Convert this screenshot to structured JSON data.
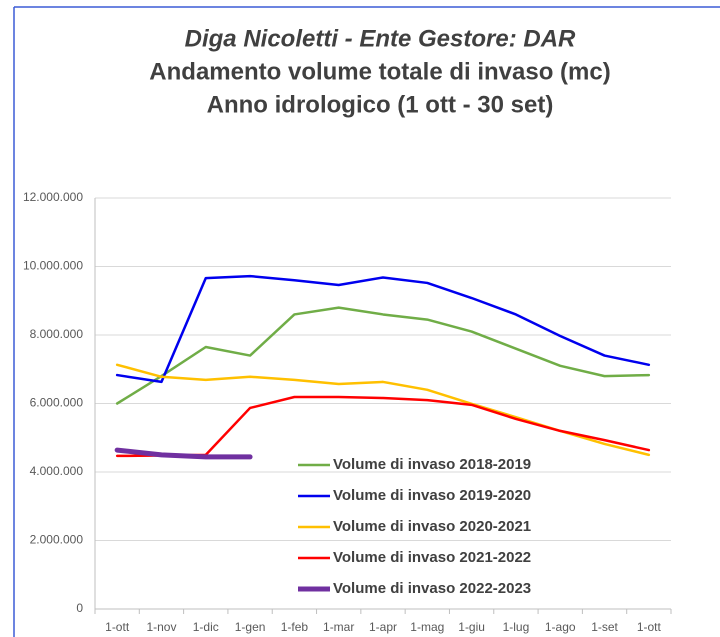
{
  "chart_data": {
    "type": "line",
    "title": "Diga Nicoletti - Ente Gestore: DAR",
    "subtitle": [
      "Andamento volume totale di invaso (mc)",
      "Anno idrologico (1 ott - 30 set)"
    ],
    "categories": [
      "1-ott",
      "1-nov",
      "1-dic",
      "1-gen",
      "1-feb",
      "1-mar",
      "1-apr",
      "1-mag",
      "1-giu",
      "1-lug",
      "1-ago",
      "1-set",
      "1-ott"
    ],
    "series": [
      {
        "name": "Volume di invaso 2018-2019",
        "color": "#70ad47",
        "width": 2.5,
        "values": [
          6000000,
          6800000,
          7650000,
          7400000,
          8600000,
          8800000,
          8600000,
          8450000,
          8100000,
          7600000,
          7100000,
          6800000,
          6830000
        ]
      },
      {
        "name": "Volume di invaso 2019-2020",
        "color": "#0000ee",
        "width": 2.5,
        "values": [
          6830000,
          6630000,
          9660000,
          9720000,
          9600000,
          9460000,
          9680000,
          9520000,
          9080000,
          8600000,
          7970000,
          7400000,
          7130000
        ]
      },
      {
        "name": "Volume di invaso 2020-2021",
        "color": "#ffc000",
        "width": 2.5,
        "values": [
          7130000,
          6780000,
          6690000,
          6780000,
          6690000,
          6570000,
          6630000,
          6400000,
          5990000,
          5600000,
          5200000,
          4820000,
          4500000
        ]
      },
      {
        "name": "Volume di invaso 2021-2022",
        "color": "#ff0000",
        "width": 2.5,
        "values": [
          4470000,
          4480000,
          4500000,
          5870000,
          6190000,
          6190000,
          6160000,
          6100000,
          5960000,
          5550000,
          5200000,
          4930000,
          4640000
        ]
      },
      {
        "name": "Volume di invaso 2022-2023",
        "color": "#7030a0",
        "width": 5,
        "values": [
          4640000,
          4500000,
          4440000,
          4440000,
          null,
          null,
          null,
          null,
          null,
          null,
          null,
          null,
          null
        ]
      }
    ],
    "ylim": [
      0,
      12000000
    ],
    "yticks": [
      0,
      {
        "value": 2000000,
        "label": "2.000.000"
      },
      {
        "value": 4000000,
        "label": "4.000.000"
      },
      {
        "value": 6000000,
        "label": "6.000.000"
      },
      {
        "value": 8000000,
        "label": "8.000.000"
      },
      {
        "value": 10000000,
        "label": "10.000.000"
      },
      {
        "value": 12000000,
        "label": "12.000.000"
      }
    ],
    "grid": true
  }
}
